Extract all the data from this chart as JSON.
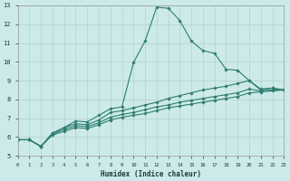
{
  "xlabel": "Humidex (Indice chaleur)",
  "background_color": "#cceaea",
  "grid_color": "#b8d4d4",
  "line_color": "#2e7d6e",
  "x_min": 0,
  "x_max": 23,
  "y_min": 5,
  "y_max": 13,
  "series": [
    {
      "x": [
        0,
        1,
        2,
        3,
        4,
        5,
        6,
        7,
        8,
        9,
        10,
        11,
        12,
        13,
        14,
        15,
        16,
        17,
        18,
        19,
        20,
        21,
        22,
        23
      ],
      "y": [
        5.85,
        5.85,
        5.5,
        6.2,
        6.5,
        6.85,
        6.8,
        7.15,
        7.5,
        7.6,
        9.95,
        11.1,
        12.9,
        12.85,
        12.2,
        11.1,
        10.6,
        10.45,
        9.6,
        9.55,
        9.0,
        8.5,
        8.6,
        8.5
      ]
    },
    {
      "x": [
        0,
        1,
        2,
        3,
        4,
        5,
        6,
        7,
        8,
        9,
        10,
        11,
        12,
        13,
        14,
        15,
        16,
        17,
        18,
        19,
        20,
        21,
        22,
        23
      ],
      "y": [
        5.85,
        5.85,
        5.5,
        6.2,
        6.5,
        6.7,
        6.65,
        6.9,
        7.3,
        7.4,
        7.55,
        7.7,
        7.85,
        8.05,
        8.2,
        8.35,
        8.5,
        8.6,
        8.7,
        8.85,
        9.0,
        8.55,
        8.6,
        8.5
      ]
    },
    {
      "x": [
        0,
        1,
        2,
        3,
        4,
        5,
        6,
        7,
        8,
        9,
        10,
        11,
        12,
        13,
        14,
        15,
        16,
        17,
        18,
        19,
        20,
        21,
        22,
        23
      ],
      "y": [
        5.85,
        5.85,
        5.5,
        6.15,
        6.4,
        6.6,
        6.55,
        6.75,
        7.05,
        7.2,
        7.3,
        7.45,
        7.6,
        7.7,
        7.85,
        7.95,
        8.05,
        8.15,
        8.25,
        8.35,
        8.55,
        8.45,
        8.5,
        8.5
      ]
    },
    {
      "x": [
        0,
        1,
        2,
        3,
        4,
        5,
        6,
        7,
        8,
        9,
        10,
        11,
        12,
        13,
        14,
        15,
        16,
        17,
        18,
        19,
        20,
        21,
        22,
        23
      ],
      "y": [
        5.85,
        5.85,
        5.5,
        6.1,
        6.3,
        6.5,
        6.45,
        6.65,
        6.9,
        7.05,
        7.15,
        7.25,
        7.4,
        7.55,
        7.65,
        7.75,
        7.85,
        7.95,
        8.05,
        8.15,
        8.35,
        8.4,
        8.45,
        8.5
      ]
    }
  ]
}
